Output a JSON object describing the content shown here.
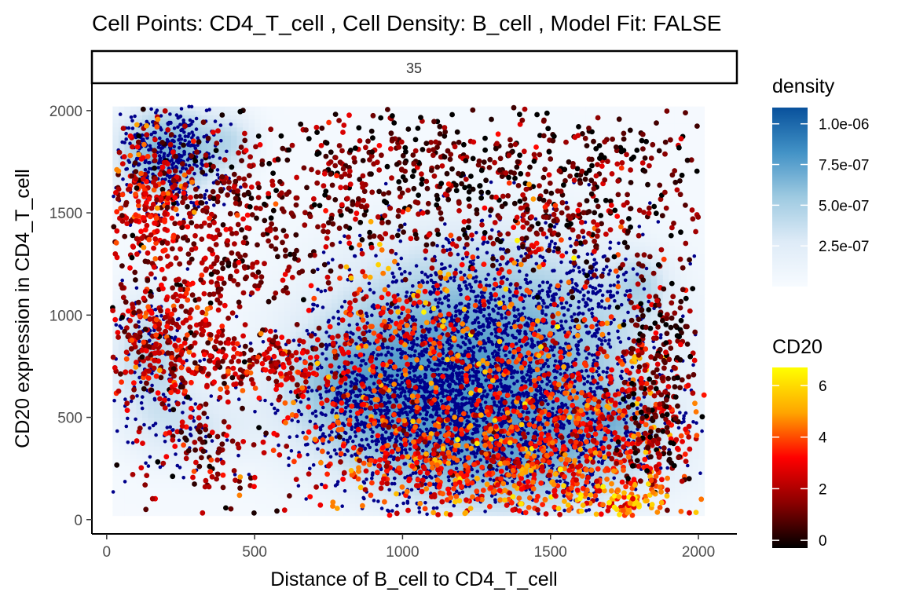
{
  "chart_data": {
    "type": "scatter",
    "title": "Cell Points: CD4_T_cell , Cell Density: B_cell , Model Fit: FALSE",
    "facet_label": "35",
    "xlabel": "Distance of B_cell to CD4_T_cell",
    "ylabel": "CD20 expression in CD4_T_cell",
    "xlim": [
      -50,
      2130
    ],
    "ylim": [
      -70,
      2130
    ],
    "x_ticks": [
      0,
      500,
      1000,
      1500,
      2000
    ],
    "y_ticks": [
      0,
      500,
      1000,
      1500,
      2000
    ],
    "grid": false,
    "density_legend": {
      "title": "density",
      "range": [
        0,
        1.1e-06
      ],
      "ticks": [
        {
          "value": 2.5e-07,
          "label": "2.5e-07"
        },
        {
          "value": 5e-07,
          "label": "5.0e-07"
        },
        {
          "value": 7.5e-07,
          "label": "7.5e-07"
        },
        {
          "value": 1e-06,
          "label": "1.0e-06"
        }
      ],
      "colors": [
        "#f7fbff",
        "#deebf7",
        "#9ecae1",
        "#4292c6",
        "#08519c"
      ]
    },
    "cd20_legend": {
      "title": "CD20",
      "range": [
        -0.3,
        6.7
      ],
      "ticks": [
        {
          "value": 0,
          "label": "0"
        },
        {
          "value": 2,
          "label": "2"
        },
        {
          "value": 4,
          "label": "4"
        },
        {
          "value": 6,
          "label": "6"
        }
      ],
      "colors": [
        "#000000",
        "#8b0000",
        "#ff0000",
        "#ffa500",
        "#ffff00"
      ]
    },
    "b_cell_color": "#00008b",
    "density_hotspots": [
      {
        "x": 210,
        "y": 1800,
        "sx": 110,
        "sy": 140,
        "w": 0.9
      },
      {
        "x": 1280,
        "y": 830,
        "sx": 320,
        "sy": 330,
        "w": 1.0
      },
      {
        "x": 1050,
        "y": 600,
        "sx": 260,
        "sy": 220,
        "w": 0.8
      },
      {
        "x": 1400,
        "y": 350,
        "sx": 280,
        "sy": 200,
        "w": 0.7
      },
      {
        "x": 150,
        "y": 800,
        "sx": 90,
        "sy": 200,
        "w": 0.45
      },
      {
        "x": 850,
        "y": 700,
        "sx": 120,
        "sy": 120,
        "w": 0.35
      },
      {
        "x": 1800,
        "y": 1150,
        "sx": 60,
        "sy": 100,
        "w": 0.35
      },
      {
        "x": 420,
        "y": 1850,
        "sx": 60,
        "sy": 90,
        "w": 0.3
      },
      {
        "x": 1700,
        "y": 500,
        "sx": 90,
        "sy": 80,
        "w": 0.4
      },
      {
        "x": 280,
        "y": 450,
        "sx": 130,
        "sy": 120,
        "w": 0.25
      }
    ],
    "b_cell_clusters": [
      {
        "x": 210,
        "y": 1790,
        "sx": 95,
        "sy": 140,
        "n": 420
      },
      {
        "x": 1280,
        "y": 850,
        "sx": 260,
        "sy": 280,
        "n": 1500
      },
      {
        "x": 1050,
        "y": 550,
        "sx": 210,
        "sy": 200,
        "n": 1100
      },
      {
        "x": 1450,
        "y": 420,
        "sx": 260,
        "sy": 210,
        "n": 900
      },
      {
        "x": 150,
        "y": 800,
        "sx": 70,
        "sy": 170,
        "n": 120
      },
      {
        "x": 240,
        "y": 420,
        "sx": 120,
        "sy": 110,
        "n": 60
      },
      {
        "x": 1650,
        "y": 1150,
        "sx": 80,
        "sy": 90,
        "n": 80
      }
    ],
    "cd4_t_cell_clusters": [
      {
        "x": 1350,
        "y": 1720,
        "sx": 430,
        "sy": 210,
        "n": 520,
        "cd20": 0.6
      },
      {
        "x": 800,
        "y": 1680,
        "sx": 300,
        "sy": 230,
        "n": 260,
        "cd20": 0.9
      },
      {
        "x": 350,
        "y": 1350,
        "sx": 200,
        "sy": 230,
        "n": 360,
        "cd20": 1.3
      },
      {
        "x": 150,
        "y": 1550,
        "sx": 70,
        "sy": 180,
        "n": 200,
        "cd20": 2.6
      },
      {
        "x": 190,
        "y": 880,
        "sx": 110,
        "sy": 150,
        "n": 260,
        "cd20": 2.4
      },
      {
        "x": 450,
        "y": 780,
        "sx": 200,
        "sy": 90,
        "n": 140,
        "cd20": 2.0
      },
      {
        "x": 620,
        "y": 740,
        "sx": 140,
        "sy": 80,
        "n": 120,
        "cd20": 2.6
      },
      {
        "x": 1050,
        "y": 330,
        "sx": 210,
        "sy": 190,
        "n": 320,
        "cd20": 3.3
      },
      {
        "x": 1450,
        "y": 230,
        "sx": 260,
        "sy": 140,
        "n": 420,
        "cd20": 3.6
      },
      {
        "x": 1650,
        "y": 550,
        "sx": 190,
        "sy": 200,
        "n": 340,
        "cd20": 3.2
      },
      {
        "x": 1300,
        "y": 1000,
        "sx": 240,
        "sy": 250,
        "n": 240,
        "cd20": 3.9
      },
      {
        "x": 1850,
        "y": 900,
        "sx": 70,
        "sy": 200,
        "n": 150,
        "cd20": 0.8
      },
      {
        "x": 1850,
        "y": 400,
        "sx": 60,
        "sy": 160,
        "n": 120,
        "cd20": 0.8
      },
      {
        "x": 330,
        "y": 320,
        "sx": 130,
        "sy": 160,
        "n": 110,
        "cd20": 1.6
      },
      {
        "x": 1750,
        "y": 90,
        "sx": 120,
        "sy": 50,
        "n": 90,
        "cd20": 5.0
      },
      {
        "x": 940,
        "y": 880,
        "sx": 110,
        "sy": 200,
        "n": 120,
        "cd20": 3.2
      },
      {
        "x": 1550,
        "y": 1450,
        "sx": 180,
        "sy": 110,
        "n": 130,
        "cd20": 1.4
      }
    ]
  }
}
